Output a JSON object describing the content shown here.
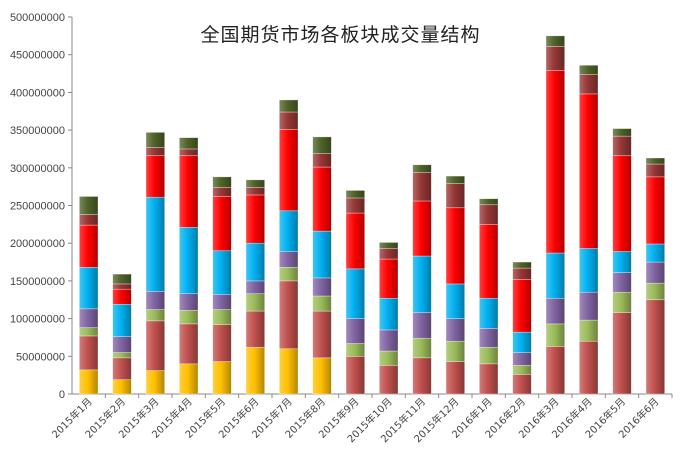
{
  "chart_data": {
    "type": "bar",
    "stacked": true,
    "title": "全国期货市场各板块成交量结构",
    "xlabel": "",
    "ylabel": "",
    "ylim": [
      0,
      500000000
    ],
    "yticks": [
      0,
      50000000,
      100000000,
      150000000,
      200000000,
      250000000,
      300000000,
      350000000,
      400000000,
      450000000,
      500000000
    ],
    "grid": false,
    "legend": "none",
    "categories": [
      "2015年1月",
      "2015年2月",
      "2015年3月",
      "2015年4月",
      "2015年5月",
      "2015年6月",
      "2015年7月",
      "2015年8月",
      "2015年9月",
      "2015年10月",
      "2015年11月",
      "2015年12月",
      "2016年1月",
      "2016年2月",
      "2016年3月",
      "2016年4月",
      "2016年5月",
      "2016年6月"
    ],
    "series": [
      {
        "color": "#FFC000",
        "values": [
          32000000,
          19000000,
          31000000,
          40000000,
          43000000,
          62000000,
          60000000,
          48000000,
          0,
          0,
          0,
          0,
          0,
          0,
          0,
          0,
          0,
          0
        ]
      },
      {
        "color": "#C0504D",
        "values": [
          45000000,
          29000000,
          66000000,
          53000000,
          49000000,
          48000000,
          90000000,
          62000000,
          50000000,
          38000000,
          48000000,
          43000000,
          40000000,
          26000000,
          63000000,
          70000000,
          108000000,
          125000000
        ]
      },
      {
        "color": "#9BBB59",
        "values": [
          11000000,
          7000000,
          15000000,
          18000000,
          20000000,
          23000000,
          18000000,
          20000000,
          17000000,
          19000000,
          26000000,
          27000000,
          22000000,
          12000000,
          30000000,
          28000000,
          27000000,
          22000000
        ]
      },
      {
        "color": "#8064A2",
        "values": [
          25000000,
          21000000,
          24000000,
          22000000,
          20000000,
          17000000,
          21000000,
          24000000,
          33000000,
          28000000,
          34000000,
          30000000,
          25000000,
          17000000,
          34000000,
          37000000,
          26000000,
          28000000
        ]
      },
      {
        "color": "#00B0F0",
        "values": [
          55000000,
          43000000,
          125000000,
          88000000,
          58000000,
          50000000,
          54000000,
          62000000,
          66000000,
          42000000,
          75000000,
          46000000,
          40000000,
          27000000,
          60000000,
          58000000,
          28000000,
          24000000
        ]
      },
      {
        "color": "#FF0000",
        "values": [
          56000000,
          20000000,
          55000000,
          95000000,
          72000000,
          64000000,
          108000000,
          85000000,
          74000000,
          52000000,
          73000000,
          101000000,
          98000000,
          70000000,
          242000000,
          205000000,
          127000000,
          89000000
        ]
      },
      {
        "color": "#953735",
        "values": [
          14000000,
          7000000,
          11000000,
          9000000,
          12000000,
          10000000,
          23000000,
          18000000,
          20000000,
          14000000,
          38000000,
          32000000,
          26000000,
          15000000,
          32000000,
          26000000,
          26000000,
          17000000
        ]
      },
      {
        "color": "#4F6228",
        "values": [
          24000000,
          13000000,
          20000000,
          15000000,
          14000000,
          10000000,
          16000000,
          22000000,
          10000000,
          8000000,
          10000000,
          10000000,
          8000000,
          8000000,
          14000000,
          12000000,
          10000000,
          8000000
        ]
      }
    ]
  }
}
